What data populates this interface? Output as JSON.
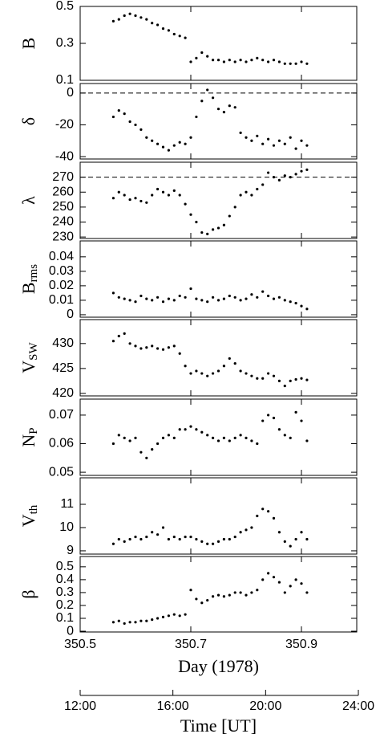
{
  "chart_data": [
    {
      "type": "scatter",
      "ylabel": "B",
      "xlim": [
        350.5,
        351.0
      ],
      "ylim": [
        0.1,
        0.5
      ],
      "yticks": [
        0.1,
        0.3,
        0.5
      ],
      "x": [
        350.56,
        350.57,
        350.58,
        350.59,
        350.6,
        350.61,
        350.62,
        350.63,
        350.64,
        350.65,
        350.66,
        350.67,
        350.68,
        350.69,
        350.7,
        350.71,
        350.72,
        350.73,
        350.74,
        350.75,
        350.76,
        350.77,
        350.78,
        350.79,
        350.8,
        350.81,
        350.82,
        350.83,
        350.84,
        350.85,
        350.86,
        350.87,
        350.88,
        350.89,
        350.9,
        350.91
      ],
      "values": [
        0.42,
        0.43,
        0.45,
        0.46,
        0.45,
        0.44,
        0.43,
        0.41,
        0.4,
        0.38,
        0.37,
        0.35,
        0.34,
        0.33,
        0.2,
        0.22,
        0.25,
        0.23,
        0.21,
        0.21,
        0.2,
        0.21,
        0.2,
        0.21,
        0.2,
        0.21,
        0.22,
        0.21,
        0.2,
        0.21,
        0.2,
        0.19,
        0.19,
        0.19,
        0.2,
        0.19
      ]
    },
    {
      "type": "scatter",
      "ylabel": "δ",
      "xlim": [
        350.5,
        351.0
      ],
      "ylim": [
        -41.5,
        6
      ],
      "yticks": [
        -40,
        -20,
        0
      ],
      "hline": 0,
      "x": [
        350.56,
        350.57,
        350.58,
        350.59,
        350.6,
        350.61,
        350.62,
        350.63,
        350.64,
        350.65,
        350.66,
        350.67,
        350.68,
        350.69,
        350.7,
        350.71,
        350.72,
        350.73,
        350.74,
        350.75,
        350.76,
        350.77,
        350.78,
        350.79,
        350.8,
        350.81,
        350.82,
        350.83,
        350.84,
        350.85,
        350.86,
        350.87,
        350.88,
        350.89,
        350.9,
        350.91
      ],
      "values": [
        -15,
        -11,
        -13,
        -18,
        -20,
        -23,
        -28,
        -30,
        -32,
        -34,
        -36,
        -33,
        -31,
        -32,
        -28,
        -15,
        -5,
        2,
        -3,
        -10,
        -12,
        -8,
        -9,
        -25,
        -28,
        -30,
        -27,
        -32,
        -29,
        -33,
        -30,
        -32,
        -28,
        -35,
        -30,
        -33
      ]
    },
    {
      "type": "scatter",
      "ylabel": "λ",
      "xlim": [
        350.5,
        351.0
      ],
      "ylim": [
        229,
        280
      ],
      "yticks": [
        230,
        240,
        250,
        260,
        270
      ],
      "hline": 270,
      "x": [
        350.56,
        350.57,
        350.58,
        350.59,
        350.6,
        350.61,
        350.62,
        350.63,
        350.64,
        350.65,
        350.66,
        350.67,
        350.68,
        350.69,
        350.7,
        350.71,
        350.72,
        350.73,
        350.74,
        350.75,
        350.76,
        350.77,
        350.78,
        350.79,
        350.8,
        350.81,
        350.82,
        350.83,
        350.84,
        350.85,
        350.86,
        350.87,
        350.88,
        350.89,
        350.9,
        350.91
      ],
      "values": [
        256,
        260,
        258,
        255,
        256,
        254,
        253,
        258,
        262,
        260,
        258,
        261,
        258,
        252,
        245,
        240,
        233,
        232,
        235,
        236,
        238,
        244,
        250,
        258,
        260,
        258,
        262,
        265,
        273,
        270,
        268,
        271,
        270,
        272,
        274,
        275
      ]
    },
    {
      "type": "scatter",
      "ylabel": "B",
      "ylabel_sub": "rms",
      "xlim": [
        350.5,
        351.0
      ],
      "ylim": [
        -0.0017,
        0.051
      ],
      "yticks": [
        0,
        0.01,
        0.02,
        0.03,
        0.04
      ],
      "x": [
        350.56,
        350.57,
        350.58,
        350.59,
        350.6,
        350.61,
        350.62,
        350.63,
        350.64,
        350.65,
        350.66,
        350.67,
        350.68,
        350.69,
        350.7,
        350.71,
        350.72,
        350.73,
        350.74,
        350.75,
        350.76,
        350.77,
        350.78,
        350.79,
        350.8,
        350.81,
        350.82,
        350.83,
        350.84,
        350.85,
        350.86,
        350.87,
        350.88,
        350.89,
        350.9,
        350.91
      ],
      "values": [
        0.015,
        0.012,
        0.011,
        0.01,
        0.009,
        0.013,
        0.011,
        0.01,
        0.012,
        0.009,
        0.011,
        0.01,
        0.013,
        0.012,
        0.018,
        0.011,
        0.01,
        0.009,
        0.012,
        0.01,
        0.011,
        0.013,
        0.012,
        0.01,
        0.011,
        0.014,
        0.012,
        0.016,
        0.013,
        0.011,
        0.012,
        0.01,
        0.009,
        0.008,
        0.006,
        0.004
      ]
    },
    {
      "type": "scatter",
      "ylabel": "V",
      "ylabel_sub": "SW",
      "xlim": [
        350.5,
        351.0
      ],
      "ylim": [
        419.5,
        434.8
      ],
      "yticks": [
        420,
        425,
        430
      ],
      "x": [
        350.56,
        350.57,
        350.58,
        350.59,
        350.6,
        350.61,
        350.62,
        350.63,
        350.64,
        350.65,
        350.66,
        350.67,
        350.68,
        350.69,
        350.7,
        350.71,
        350.72,
        350.73,
        350.74,
        350.75,
        350.76,
        350.77,
        350.78,
        350.79,
        350.8,
        350.81,
        350.82,
        350.83,
        350.84,
        350.85,
        350.86,
        350.87,
        350.88,
        350.89,
        350.9,
        350.91
      ],
      "values": [
        430.5,
        431.5,
        432,
        430,
        429.5,
        429,
        429.2,
        429.5,
        429,
        428.8,
        429.2,
        429.5,
        428,
        425.5,
        424,
        424.5,
        424,
        423.5,
        424,
        424.5,
        425.5,
        427,
        426,
        424.5,
        424,
        423.5,
        423,
        423,
        424,
        423.5,
        422.5,
        421.5,
        422.5,
        422.8,
        423,
        422.7
      ]
    },
    {
      "type": "scatter",
      "ylabel": "N",
      "ylabel_sub": "P",
      "xlim": [
        350.5,
        351.0
      ],
      "ylim": [
        0.0489,
        0.0756
      ],
      "yticks": [
        0.05,
        0.06,
        0.07
      ],
      "x": [
        350.56,
        350.57,
        350.58,
        350.59,
        350.6,
        350.61,
        350.62,
        350.63,
        350.64,
        350.65,
        350.66,
        350.67,
        350.68,
        350.69,
        350.7,
        350.71,
        350.72,
        350.73,
        350.74,
        350.75,
        350.76,
        350.77,
        350.78,
        350.79,
        350.8,
        350.81,
        350.82,
        350.83,
        350.84,
        350.85,
        350.86,
        350.87,
        350.88,
        350.89,
        350.9,
        350.91
      ],
      "values": [
        0.06,
        0.063,
        0.062,
        0.061,
        0.062,
        0.057,
        0.055,
        0.058,
        0.06,
        0.062,
        0.063,
        0.062,
        0.065,
        0.065,
        0.066,
        0.065,
        0.064,
        0.063,
        0.062,
        0.061,
        0.062,
        0.061,
        0.062,
        0.063,
        0.062,
        0.061,
        0.06,
        0.068,
        0.07,
        0.069,
        0.065,
        0.063,
        0.062,
        0.071,
        0.068,
        0.061
      ]
    },
    {
      "type": "scatter",
      "ylabel": "V",
      "ylabel_sub": "th",
      "xlim": [
        350.5,
        351.0
      ],
      "ylim": [
        8.86,
        12.14
      ],
      "yticks": [
        9,
        10,
        11
      ],
      "x": [
        350.56,
        350.57,
        350.58,
        350.59,
        350.6,
        350.61,
        350.62,
        350.63,
        350.64,
        350.65,
        350.66,
        350.67,
        350.68,
        350.69,
        350.7,
        350.71,
        350.72,
        350.73,
        350.74,
        350.75,
        350.76,
        350.77,
        350.78,
        350.79,
        350.8,
        350.81,
        350.82,
        350.83,
        350.84,
        350.85,
        350.86,
        350.87,
        350.88,
        350.89,
        350.9,
        350.91
      ],
      "values": [
        9.3,
        9.5,
        9.4,
        9.5,
        9.6,
        9.5,
        9.6,
        9.8,
        9.7,
        10,
        9.5,
        9.6,
        9.5,
        9.6,
        9.6,
        9.5,
        9.4,
        9.3,
        9.3,
        9.4,
        9.5,
        9.5,
        9.6,
        9.8,
        9.9,
        10,
        10.5,
        10.8,
        10.7,
        10.4,
        9.8,
        9.4,
        9.2,
        9.5,
        9.8,
        9.5
      ]
    },
    {
      "type": "scatter",
      "ylabel": "β",
      "xlim": [
        350.5,
        351.0
      ],
      "ylim": [
        -0.006,
        0.58
      ],
      "yticks": [
        0,
        0.1,
        0.2,
        0.3,
        0.4,
        0.5
      ],
      "xticks": [
        350.5,
        350.7,
        350.9
      ],
      "xlabel": "Day (1978)",
      "x": [
        350.56,
        350.57,
        350.58,
        350.59,
        350.6,
        350.61,
        350.62,
        350.63,
        350.64,
        350.65,
        350.66,
        350.67,
        350.68,
        350.69,
        350.7,
        350.71,
        350.72,
        350.73,
        350.74,
        350.75,
        350.76,
        350.77,
        350.78,
        350.79,
        350.8,
        350.81,
        350.82,
        350.83,
        350.84,
        350.85,
        350.86,
        350.87,
        350.88,
        350.89,
        350.9,
        350.91
      ],
      "values": [
        0.07,
        0.08,
        0.06,
        0.07,
        0.07,
        0.08,
        0.08,
        0.09,
        0.1,
        0.11,
        0.12,
        0.13,
        0.12,
        0.13,
        0.32,
        0.25,
        0.22,
        0.24,
        0.27,
        0.28,
        0.27,
        0.28,
        0.3,
        0.3,
        0.28,
        0.3,
        0.32,
        0.4,
        0.45,
        0.42,
        0.38,
        0.3,
        0.35,
        0.4,
        0.37,
        0.3
      ]
    },
    {
      "type": "axis",
      "xlabel": "Time [UT]",
      "xlim": [
        12,
        24
      ],
      "xticks": [
        {
          "value": 12,
          "label": "12:00"
        },
        {
          "value": 16,
          "label": "16:00"
        },
        {
          "value": 20,
          "label": "20:00"
        },
        {
          "value": 24,
          "label": "24:00"
        }
      ]
    }
  ]
}
